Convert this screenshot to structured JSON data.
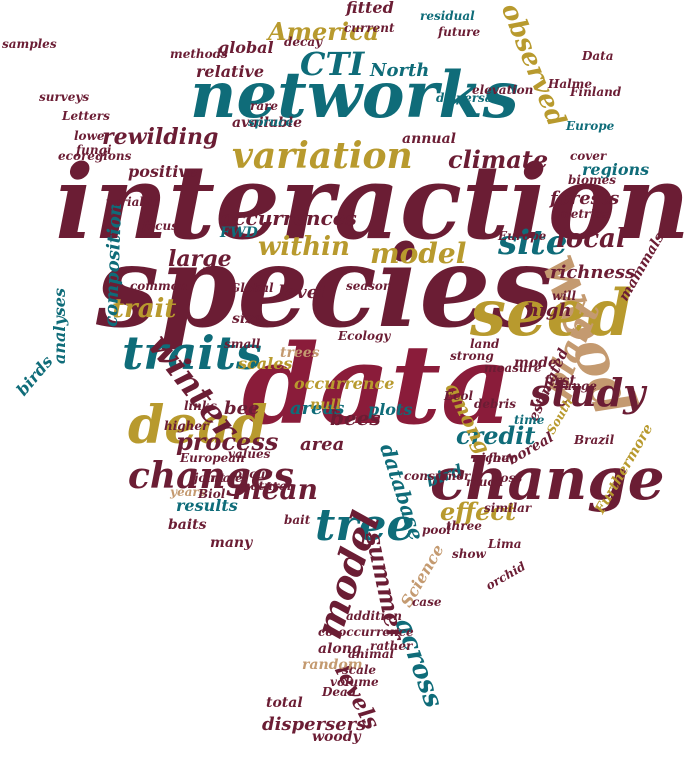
{
  "palette": [
    "#6b1d34",
    "#0f6c79",
    "#b89a2e",
    "#c49a70",
    "#8a1c3a"
  ],
  "words": [
    {
      "text": "interaction",
      "color": 0
    },
    {
      "text": "species",
      "color": 0
    },
    {
      "text": "data",
      "color": 4
    },
    {
      "text": "networks",
      "color": 1
    },
    {
      "text": "wood",
      "color": 3
    },
    {
      "text": "seed",
      "color": 2
    },
    {
      "text": "change",
      "color": 0
    },
    {
      "text": "dead",
      "color": 2
    },
    {
      "text": "traits",
      "color": 1
    },
    {
      "text": "winter",
      "color": 0
    },
    {
      "text": "variation",
      "color": 2
    },
    {
      "text": "changes",
      "color": 0
    },
    {
      "text": "tree",
      "color": 1
    },
    {
      "text": "model",
      "color": 2
    },
    {
      "text": "model",
      "color": 0
    },
    {
      "text": "plant",
      "color": 3
    },
    {
      "text": "study",
      "color": 0
    },
    {
      "text": "CTI",
      "color": 1
    },
    {
      "text": "America",
      "color": 2
    },
    {
      "text": "trait",
      "color": 2
    },
    {
      "text": "site",
      "color": 1
    },
    {
      "text": "across",
      "color": 1
    },
    {
      "text": "summer",
      "color": 0
    },
    {
      "text": "climate",
      "color": 0
    },
    {
      "text": "within",
      "color": 2
    },
    {
      "text": "credit",
      "color": 1
    },
    {
      "text": "observed",
      "color": 2
    },
    {
      "text": "process",
      "color": 0
    },
    {
      "text": "mean",
      "color": 0
    },
    {
      "text": "effect",
      "color": 2
    },
    {
      "text": "local",
      "color": 0
    },
    {
      "text": "large",
      "color": 0
    },
    {
      "text": "occurrences",
      "color": 0
    },
    {
      "text": "rewilding",
      "color": 0
    },
    {
      "text": "bees",
      "color": 0
    },
    {
      "text": "levels",
      "color": 0
    },
    {
      "text": "among",
      "color": 2
    },
    {
      "text": "database",
      "color": 1
    },
    {
      "text": "composition",
      "color": 1
    },
    {
      "text": "analyses",
      "color": 1
    },
    {
      "text": "area",
      "color": 0
    },
    {
      "text": "areas",
      "color": 1
    },
    {
      "text": "plots",
      "color": 1
    },
    {
      "text": "forests",
      "color": 0
    },
    {
      "text": "bird",
      "color": 1
    },
    {
      "text": "level",
      "color": 0
    },
    {
      "text": "richness",
      "color": 0
    },
    {
      "text": "high",
      "color": 0
    },
    {
      "text": "bee",
      "color": 0
    },
    {
      "text": "occurrence",
      "color": 2
    },
    {
      "text": "scales",
      "color": 2
    },
    {
      "text": "birds",
      "color": 1
    },
    {
      "text": "results",
      "color": 1
    },
    {
      "text": "dispersers",
      "color": 0
    },
    {
      "text": "Science",
      "color": 3
    },
    {
      "text": "global",
      "color": 0
    },
    {
      "text": "relative",
      "color": 0
    },
    {
      "text": "positive",
      "color": 0
    },
    {
      "text": "North",
      "color": 1
    },
    {
      "text": "regions",
      "color": 1
    },
    {
      "text": "available",
      "color": 0
    },
    {
      "text": "fitted",
      "color": 0
    },
    {
      "text": "size",
      "color": 0
    },
    {
      "text": "trees",
      "color": 3
    },
    {
      "text": "boreal",
      "color": 0
    },
    {
      "text": "estimated",
      "color": 0
    },
    {
      "text": "first",
      "color": 0
    },
    {
      "text": "mode",
      "color": 0
    },
    {
      "text": "many",
      "color": 0
    },
    {
      "text": "along",
      "color": 0
    },
    {
      "text": "total",
      "color": 0
    },
    {
      "text": "random",
      "color": 3
    },
    {
      "text": "woody",
      "color": 0
    },
    {
      "text": "annual",
      "color": 0
    },
    {
      "text": "mammals",
      "color": 0
    },
    {
      "text": "variable",
      "color": 0
    },
    {
      "text": "Europe",
      "color": 1
    },
    {
      "text": "land",
      "color": 0
    },
    {
      "text": "time",
      "color": 1
    },
    {
      "text": "range",
      "color": 0
    },
    {
      "text": "Furthermore",
      "color": 2
    },
    {
      "text": "consumer",
      "color": 0
    },
    {
      "text": "baits",
      "color": 0
    },
    {
      "text": "values",
      "color": 0
    },
    {
      "text": "occur",
      "color": 0
    },
    {
      "text": "null",
      "color": 2
    },
    {
      "text": "joint",
      "color": 0
    },
    {
      "text": "small",
      "color": 0
    },
    {
      "text": "FWD",
      "color": 1
    },
    {
      "text": "Global",
      "color": 0
    },
    {
      "text": "years",
      "color": 3
    },
    {
      "text": "scale",
      "color": 0
    },
    {
      "text": "Dead",
      "color": 0
    },
    {
      "text": "animal",
      "color": 0
    },
    {
      "text": "orchid",
      "color": 0
    },
    {
      "text": "similar",
      "color": 0
    },
    {
      "text": "South",
      "color": 2
    },
    {
      "text": "Brazil",
      "color": 0
    },
    {
      "text": "co-occurrence",
      "color": 0
    },
    {
      "text": "dispersal",
      "color": 1
    },
    {
      "text": "current",
      "color": 0
    },
    {
      "text": "future",
      "color": 0
    },
    {
      "text": "methods",
      "color": 0
    },
    {
      "text": "residual",
      "color": 1
    },
    {
      "text": "Halme",
      "color": 0
    },
    {
      "text": "Finland",
      "color": 0
    },
    {
      "text": "elevation",
      "color": 0
    },
    {
      "text": "season",
      "color": 0
    },
    {
      "text": "spruce",
      "color": 1
    },
    {
      "text": "case",
      "color": 0
    },
    {
      "text": "higher",
      "color": 0
    },
    {
      "text": "European",
      "color": 0
    },
    {
      "text": "debris",
      "color": 0
    },
    {
      "text": "show",
      "color": 0
    },
    {
      "text": "strong",
      "color": 0
    },
    {
      "text": "male",
      "color": 0
    },
    {
      "text": "Biol",
      "color": 0
    },
    {
      "text": "natural",
      "color": 0
    },
    {
      "text": "measure",
      "color": 0
    },
    {
      "text": "much",
      "color": 0
    },
    {
      "text": "four",
      "color": 0
    },
    {
      "text": "links",
      "color": 0
    },
    {
      "text": "cover",
      "color": 0
    },
    {
      "text": "rare",
      "color": 0
    },
    {
      "text": "Europe",
      "color": 0
    },
    {
      "text": "metrics",
      "color": 0
    },
    {
      "text": "biomes",
      "color": 0
    },
    {
      "text": "ecoregions",
      "color": 0
    },
    {
      "text": "lower",
      "color": 0
    },
    {
      "text": "Letters",
      "color": 0
    },
    {
      "text": "rather",
      "color": 0
    },
    {
      "text": "addition",
      "color": 0
    },
    {
      "text": "volume",
      "color": 0
    },
    {
      "text": "pool",
      "color": 0
    },
    {
      "text": "three",
      "color": 0
    },
    {
      "text": "Lima",
      "color": 0
    },
    {
      "text": "Ecol",
      "color": 0
    },
    {
      "text": "will",
      "color": 0
    },
    {
      "text": "bait",
      "color": 0
    },
    {
      "text": "loss",
      "color": 0
    },
    {
      "text": "niche",
      "color": 0
    },
    {
      "text": "common",
      "color": 0
    },
    {
      "text": "focus",
      "color": 0
    },
    {
      "text": "decay",
      "color": 0
    },
    {
      "text": "Data",
      "color": 0
    },
    {
      "text": "Ecology",
      "color": 0
    },
    {
      "text": "samples",
      "color": 0
    },
    {
      "text": "surveys",
      "color": 0
    },
    {
      "text": "fungi",
      "color": 0
    }
  ]
}
